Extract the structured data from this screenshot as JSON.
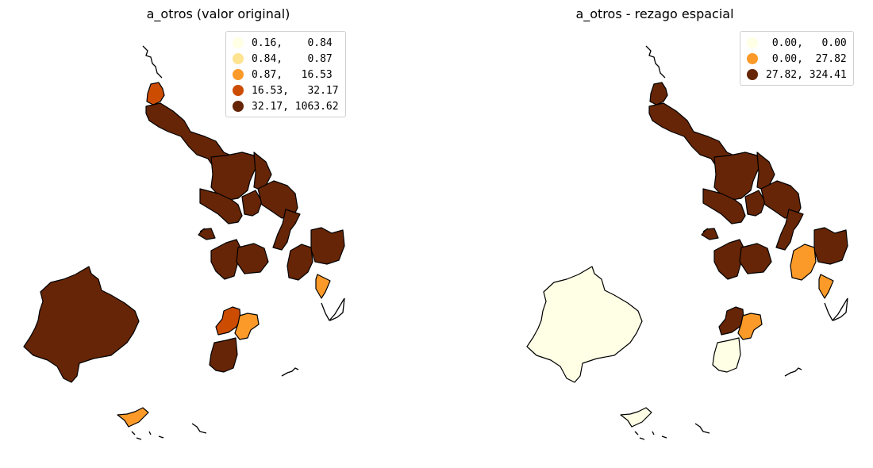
{
  "maps": [
    {
      "title": "a_otros (valor original)",
      "legend": [
        {
          "label": "0.16,    0.84",
          "color": "#ffffe5"
        },
        {
          "label": "0.84,    0.87",
          "color": "#fee391"
        },
        {
          "label": "0.87,   16.53",
          "color": "#fb9a29"
        },
        {
          "label": "16.53,   32.17",
          "color": "#cc4c02"
        },
        {
          "label": "32.17, 1063.62",
          "color": "#662506"
        }
      ],
      "region_classes": {
        "big_west": 4,
        "north_tip": 3,
        "north_chain": 4,
        "center_a": 4,
        "center_b": 4,
        "center_c": 4,
        "center_d": 4,
        "center_e": 4,
        "left_small": 4,
        "mid_a": 4,
        "mid_b": 4,
        "right_a": 4,
        "right_b": 4,
        "right_c": 2,
        "right_d": 4,
        "south_a": 3,
        "south_b": 2,
        "south_c": 4,
        "bottom_island": 2
      }
    },
    {
      "title": "a_otros - rezago espacial",
      "legend": [
        {
          "label": " 0.00,   0.00",
          "color": "#ffffe5"
        },
        {
          "label": " 0.00,  27.82",
          "color": "#fb9a29"
        },
        {
          "label": "27.82, 324.41",
          "color": "#662506"
        }
      ],
      "region_classes": {
        "big_west": 0,
        "north_tip": 2,
        "north_chain": 2,
        "center_a": 2,
        "center_b": 2,
        "center_c": 2,
        "center_d": 2,
        "center_e": 2,
        "left_small": 2,
        "mid_a": 2,
        "mid_b": 2,
        "right_a": 2,
        "right_b": 2,
        "right_c": 1,
        "right_d": 1,
        "south_a": 2,
        "south_b": 1,
        "south_c": 0,
        "bottom_island": 0
      }
    }
  ]
}
